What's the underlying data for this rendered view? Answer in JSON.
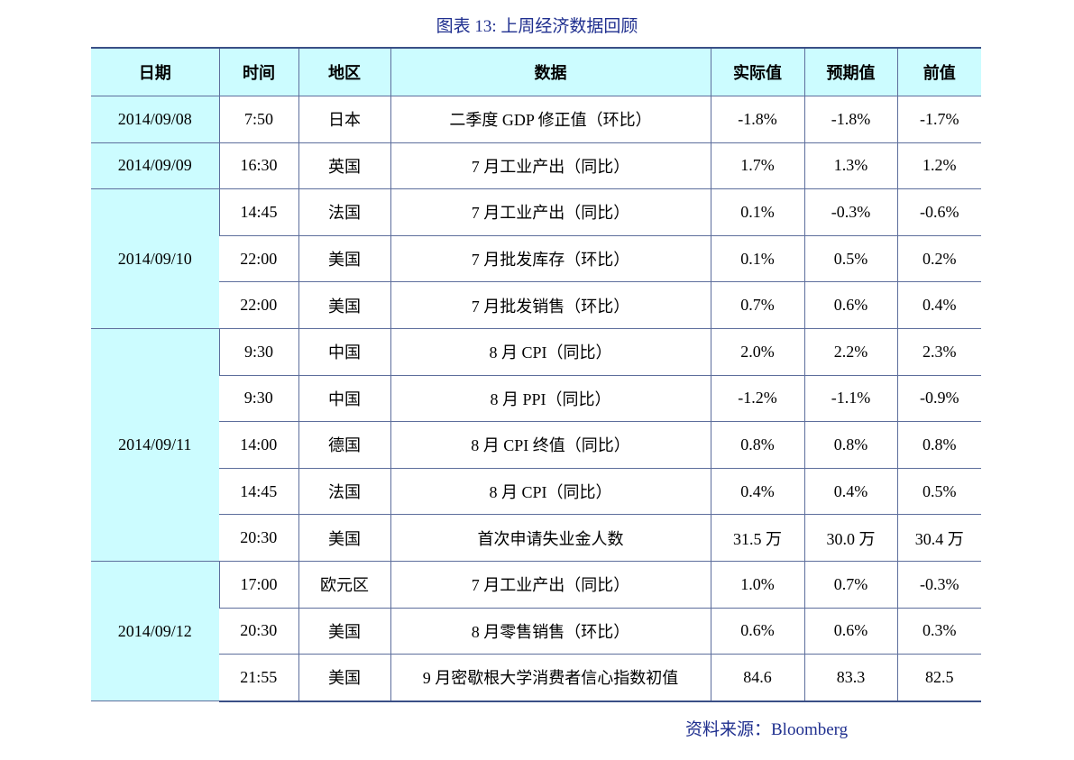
{
  "caption": "图表 13: 上周经济数据回顾",
  "headers": {
    "date": "日期",
    "time": "时间",
    "region": "地区",
    "data": "数据",
    "actual": "实际值",
    "forecast": "预期值",
    "previous": "前值"
  },
  "groups": [
    {
      "date": "2014/09/08",
      "rows": [
        {
          "time": "7:50",
          "region": "日本",
          "data": "二季度 GDP 修正值（环比）",
          "actual": "-1.8%",
          "forecast": "-1.8%",
          "previous": "-1.7%"
        }
      ]
    },
    {
      "date": "2014/09/09",
      "rows": [
        {
          "time": "16:30",
          "region": "英国",
          "data": "7 月工业产出（同比）",
          "actual": "1.7%",
          "forecast": "1.3%",
          "previous": "1.2%"
        }
      ]
    },
    {
      "date": "2014/09/10",
      "rows": [
        {
          "time": "14:45",
          "region": "法国",
          "data": "7 月工业产出（同比）",
          "actual": "0.1%",
          "forecast": "-0.3%",
          "previous": "-0.6%"
        },
        {
          "time": "22:00",
          "region": "美国",
          "data": "7 月批发库存（环比）",
          "actual": "0.1%",
          "forecast": "0.5%",
          "previous": "0.2%"
        },
        {
          "time": "22:00",
          "region": "美国",
          "data": "7 月批发销售（环比）",
          "actual": "0.7%",
          "forecast": "0.6%",
          "previous": "0.4%"
        }
      ]
    },
    {
      "date": "2014/09/11",
      "rows": [
        {
          "time": "9:30",
          "region": "中国",
          "data": "8 月 CPI（同比）",
          "actual": "2.0%",
          "forecast": "2.2%",
          "previous": "2.3%"
        },
        {
          "time": "9:30",
          "region": "中国",
          "data": "8 月 PPI（同比）",
          "actual": "-1.2%",
          "forecast": "-1.1%",
          "previous": "-0.9%"
        },
        {
          "time": "14:00",
          "region": "德国",
          "data": "8 月 CPI 终值（同比）",
          "actual": "0.8%",
          "forecast": "0.8%",
          "previous": "0.8%"
        },
        {
          "time": "14:45",
          "region": "法国",
          "data": "8 月 CPI（同比）",
          "actual": "0.4%",
          "forecast": "0.4%",
          "previous": "0.5%"
        },
        {
          "time": "20:30",
          "region": "美国",
          "data": "首次申请失业金人数",
          "actual": "31.5 万",
          "forecast": "30.0 万",
          "previous": "30.4 万"
        }
      ]
    },
    {
      "date": "2014/09/12",
      "rows": [
        {
          "time": "17:00",
          "region": "欧元区",
          "data": "7 月工业产出（同比）",
          "actual": "1.0%",
          "forecast": "0.7%",
          "previous": "-0.3%"
        },
        {
          "time": "20:30",
          "region": "美国",
          "data": "8 月零售销售（环比）",
          "actual": "0.6%",
          "forecast": "0.6%",
          "previous": "0.3%"
        },
        {
          "time": "21:55",
          "region": "美国",
          "data": "9 月密歇根大学消费者信心指数初值",
          "actual": "84.6",
          "forecast": "83.3",
          "previous": "82.5"
        }
      ]
    }
  ],
  "source": "资料来源：Bloomberg"
}
